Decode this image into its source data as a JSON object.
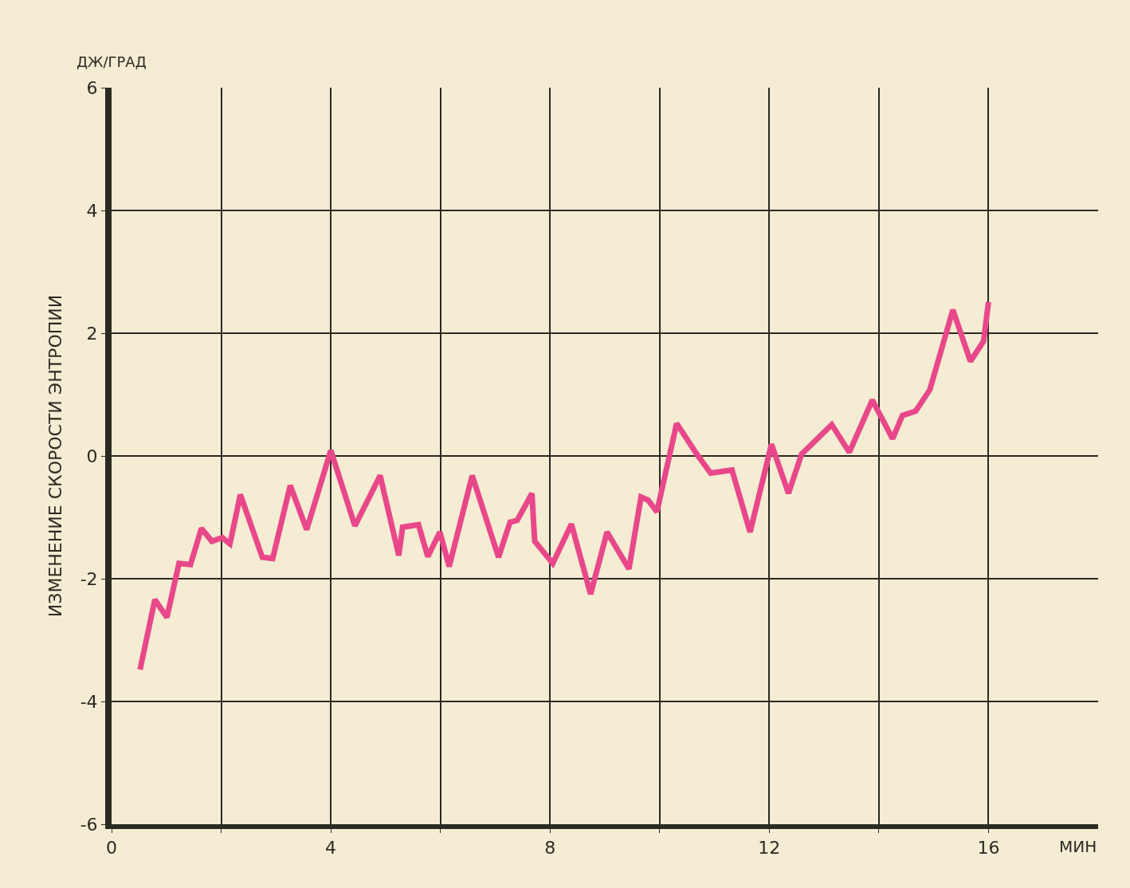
{
  "chart_data": {
    "type": "line",
    "ylabel": "ИЗМЕНЕНИЕ СКОРОСТИ ЭНТРОПИИ",
    "xlabel": "МИН",
    "annotations": [
      "ДЖ/ГРАД"
    ],
    "x": [
      0.52,
      0.79,
      1.01,
      1.23,
      1.44,
      1.64,
      1.83,
      2.02,
      2.16,
      2.35,
      2.75,
      2.94,
      3.26,
      3.56,
      4.0,
      4.44,
      4.9,
      5.24,
      5.31,
      5.6,
      5.77,
      5.99,
      6.16,
      6.58,
      7.06,
      7.27,
      7.4,
      7.67,
      7.72,
      8.05,
      8.39,
      8.74,
      9.04,
      9.44,
      9.66,
      9.79,
      9.95,
      10.31,
      10.67,
      10.93,
      11.32,
      11.65,
      12.04,
      12.35,
      12.59,
      13.14,
      13.46,
      13.88,
      14.25,
      14.43,
      14.67,
      14.93,
      15.35,
      15.67,
      15.91,
      16.0
    ],
    "series": [
      {
        "color": "#e8488a",
        "values": [
          -3.48,
          -2.34,
          -2.63,
          -1.75,
          -1.77,
          -1.18,
          -1.39,
          -1.33,
          -1.43,
          -0.63,
          -1.65,
          -1.67,
          -0.48,
          -1.2,
          0.09,
          -1.14,
          -0.32,
          -1.62,
          -1.16,
          -1.12,
          -1.64,
          -1.24,
          -1.8,
          -0.32,
          -1.65,
          -1.08,
          -1.05,
          -0.61,
          -1.39,
          -1.75,
          -1.11,
          -2.25,
          -1.24,
          -1.84,
          -0.67,
          -0.72,
          -0.91,
          0.53,
          0.04,
          -0.28,
          -0.23,
          -1.24,
          0.19,
          -0.61,
          0.03,
          0.51,
          0.06,
          0.91,
          0.28,
          0.66,
          0.73,
          1.08,
          2.38,
          1.54,
          1.87,
          2.51
        ]
      }
    ],
    "xlim": [
      0,
      18
    ],
    "xticks": [
      0,
      {
        "value": 2,
        "label": null
      },
      4,
      {
        "value": 6,
        "label": null
      },
      8,
      {
        "value": 10,
        "label": null
      },
      12,
      {
        "value": 14,
        "label": null
      },
      16
    ],
    "ylim": [
      -6,
      6
    ],
    "yticks": [
      -6,
      -4,
      -2,
      0,
      2,
      4,
      6
    ],
    "grid": true,
    "line_style": "solid",
    "marker": "none"
  }
}
